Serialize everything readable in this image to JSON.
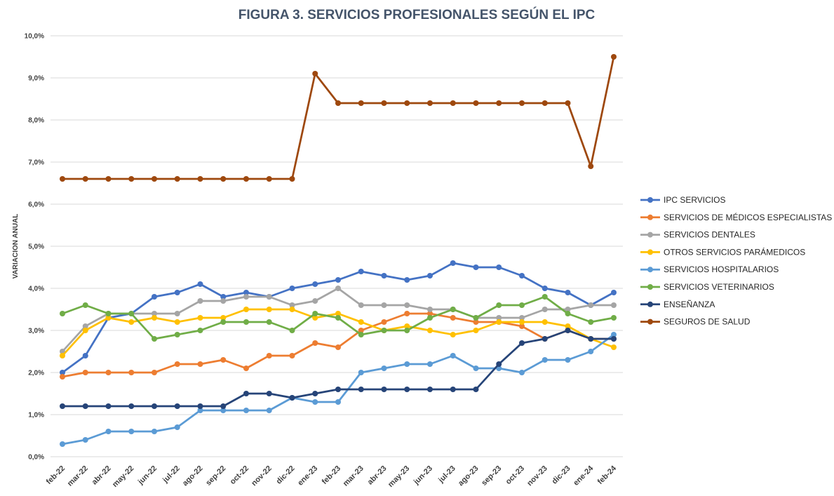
{
  "chart_data": {
    "type": "line",
    "title": "FIGURA 3. SERVICIOS PROFESIONALES SEGÚN EL IPC",
    "ylabel": "VARIACION ANUAL",
    "xlabel": "",
    "ylim": [
      0,
      10
    ],
    "yticks": [
      0,
      1,
      2,
      3,
      4,
      5,
      6,
      7,
      8,
      9,
      10
    ],
    "ytick_labels": [
      "0,0%",
      "1,0%",
      "2,0%",
      "3,0%",
      "4,0%",
      "5,0%",
      "6,0%",
      "7,0%",
      "8,0%",
      "9,0%",
      "10,0%"
    ],
    "grid": "horizontal",
    "legend_position": "right",
    "categories": [
      "feb-22",
      "mar-22",
      "abr-22",
      "may-22",
      "jun-22",
      "jul-22",
      "ago-22",
      "sep-22",
      "oct-22",
      "nov-22",
      "dic-22",
      "ene-23",
      "feb-23",
      "mar-23",
      "abr-23",
      "may-23",
      "jun-23",
      "jul-23",
      "ago-23",
      "sep-23",
      "oct-23",
      "nov-23",
      "dic-23",
      "ene-24",
      "feb-24"
    ],
    "series": [
      {
        "name": "IPC SERVICIOS",
        "color": "#4472c4",
        "values": [
          2.0,
          2.4,
          3.3,
          3.4,
          3.8,
          3.9,
          4.1,
          3.8,
          3.9,
          3.8,
          4.0,
          4.1,
          4.2,
          4.4,
          4.3,
          4.2,
          4.3,
          4.6,
          4.5,
          4.5,
          4.3,
          4.0,
          3.9,
          3.6,
          3.9
        ]
      },
      {
        "name": "SERVICIOS DE MÉDICOS ESPECIALISTAS",
        "color": "#ed7d31",
        "values": [
          1.9,
          2.0,
          2.0,
          2.0,
          2.0,
          2.2,
          2.2,
          2.3,
          2.1,
          2.4,
          2.4,
          2.7,
          2.6,
          3.0,
          3.2,
          3.4,
          3.4,
          3.3,
          3.2,
          3.2,
          3.1,
          2.8,
          3.0,
          2.8,
          2.8
        ]
      },
      {
        "name": "SERVICIOS DENTALES",
        "color": "#a5a5a5",
        "values": [
          2.5,
          3.1,
          3.4,
          3.4,
          3.4,
          3.4,
          3.7,
          3.7,
          3.8,
          3.8,
          3.6,
          3.7,
          4.0,
          3.6,
          3.6,
          3.6,
          3.5,
          3.5,
          3.3,
          3.3,
          3.3,
          3.5,
          3.5,
          3.6,
          3.6
        ]
      },
      {
        "name": "OTROS SERVICIOS PARÁMEDICOS",
        "color": "#ffc000",
        "values": [
          2.4,
          3.0,
          3.3,
          3.2,
          3.3,
          3.2,
          3.3,
          3.3,
          3.5,
          3.5,
          3.5,
          3.3,
          3.4,
          3.2,
          3.0,
          3.1,
          3.0,
          2.9,
          3.0,
          3.2,
          3.2,
          3.2,
          3.1,
          2.8,
          2.6
        ]
      },
      {
        "name": "SERVICIOS HOSPITALARIOS",
        "color": "#5b9bd5",
        "values": [
          0.3,
          0.4,
          0.6,
          0.6,
          0.6,
          0.7,
          1.1,
          1.1,
          1.1,
          1.1,
          1.4,
          1.3,
          1.3,
          2.0,
          2.1,
          2.2,
          2.2,
          2.4,
          2.1,
          2.1,
          2.0,
          2.3,
          2.3,
          2.5,
          2.9
        ]
      },
      {
        "name": "SERVICIOS VETERINARIOS",
        "color": "#70ad47",
        "values": [
          3.4,
          3.6,
          3.4,
          3.4,
          2.8,
          2.9,
          3.0,
          3.2,
          3.2,
          3.2,
          3.0,
          3.4,
          3.3,
          2.9,
          3.0,
          3.0,
          3.3,
          3.5,
          3.3,
          3.6,
          3.6,
          3.8,
          3.4,
          3.2,
          3.3
        ]
      },
      {
        "name": "ENSEÑANZA",
        "color": "#264478",
        "values": [
          1.2,
          1.2,
          1.2,
          1.2,
          1.2,
          1.2,
          1.2,
          1.2,
          1.5,
          1.5,
          1.4,
          1.5,
          1.6,
          1.6,
          1.6,
          1.6,
          1.6,
          1.6,
          1.6,
          2.2,
          2.7,
          2.8,
          3.0,
          2.8,
          2.8
        ]
      },
      {
        "name": "SEGUROS DE SALUD",
        "color": "#9e480e",
        "values": [
          6.6,
          6.6,
          6.6,
          6.6,
          6.6,
          6.6,
          6.6,
          6.6,
          6.6,
          6.6,
          6.6,
          9.1,
          8.4,
          8.4,
          8.4,
          8.4,
          8.4,
          8.4,
          8.4,
          8.4,
          8.4,
          8.4,
          8.4,
          6.9,
          9.5
        ]
      }
    ]
  }
}
